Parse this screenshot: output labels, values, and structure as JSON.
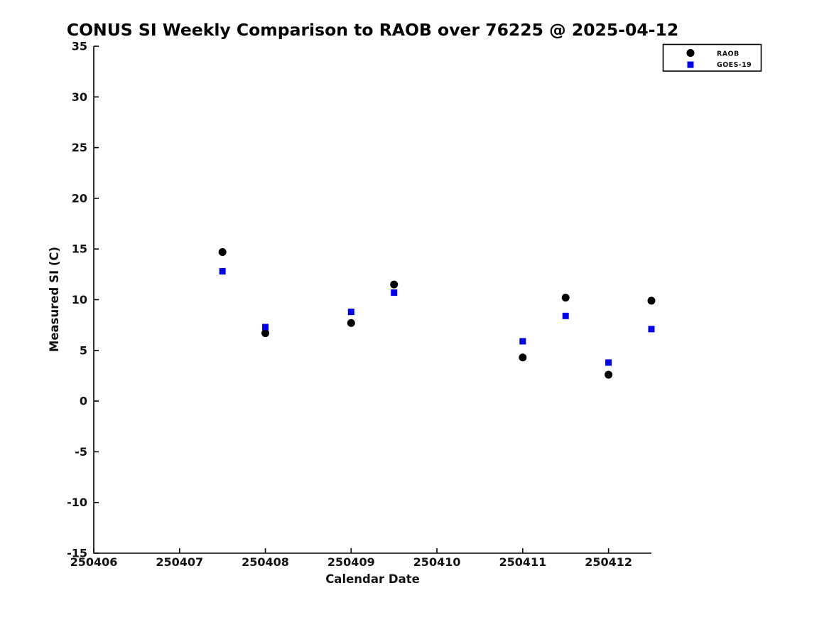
{
  "chart_data": {
    "type": "scatter",
    "title": "CONUS SI Weekly Comparison to RAOB over 76225 @ 2025-04-12",
    "xlabel": "Calendar Date",
    "ylabel": "Measured SI (C)",
    "xlim": [
      250406,
      250412.5
    ],
    "ylim": [
      -15,
      35
    ],
    "xticks": [
      250406,
      250407,
      250408,
      250409,
      250410,
      250411,
      250412
    ],
    "yticks": [
      35,
      30,
      25,
      20,
      15,
      10,
      5,
      0,
      -5,
      -10,
      -15
    ],
    "grid": false,
    "legend_position": "top-right",
    "x": [
      250407.5,
      250408,
      250409,
      250409.5,
      250411,
      250411.5,
      250412,
      250412.5
    ],
    "series": [
      {
        "name": "RAOB",
        "marker": "circle",
        "color": "#000000",
        "values": [
          14.7,
          6.7,
          7.7,
          11.5,
          4.3,
          10.2,
          2.6,
          9.9
        ]
      },
      {
        "name": "GOES-19",
        "marker": "square",
        "color": "#0000ee",
        "values": [
          12.8,
          7.3,
          8.8,
          10.7,
          5.9,
          8.4,
          3.8,
          7.1
        ]
      }
    ]
  }
}
